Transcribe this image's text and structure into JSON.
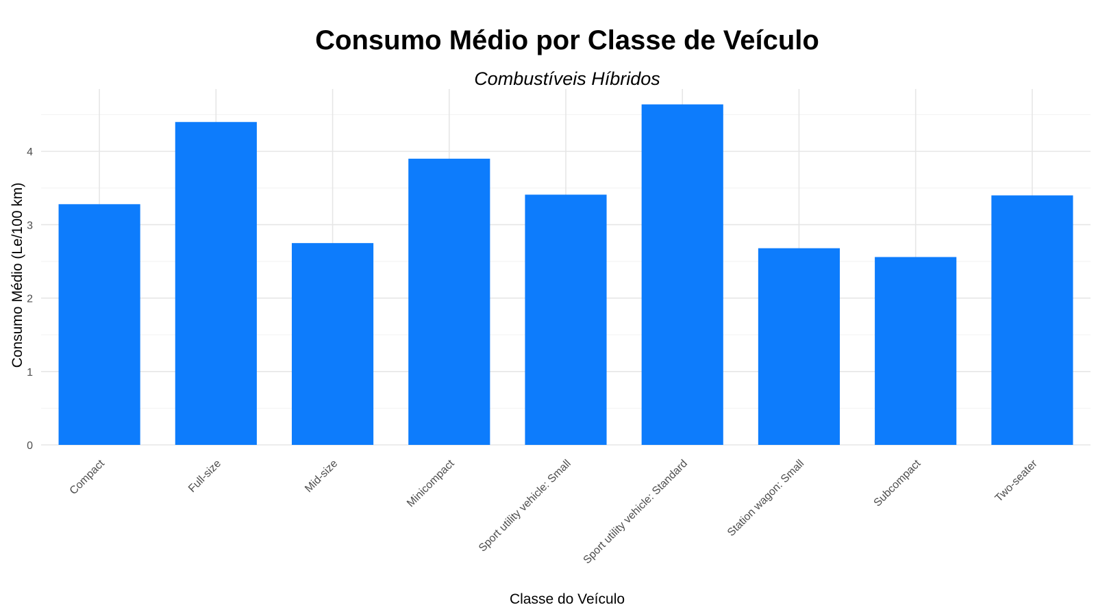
{
  "chart_data": {
    "type": "bar",
    "title": "Consumo Médio por Classe de Veículo",
    "subtitle": "Combustíveis Híbridos",
    "xlabel": "Classe do Veículo",
    "ylabel": "Consumo Médio (Le/100 km)",
    "categories": [
      "Compact",
      "Full-size",
      "Mid-size",
      "Minicompact",
      "Sport utility vehicle: Small",
      "Sport utility vehicle: Standard",
      "Station wagon: Small",
      "Subcompact",
      "Two-seater"
    ],
    "values": [
      3.28,
      4.4,
      2.75,
      3.9,
      3.41,
      4.64,
      2.68,
      2.56,
      3.4
    ],
    "ylim": [
      0,
      4.85
    ],
    "yticks": [
      0,
      1,
      2,
      3,
      4
    ],
    "grid": true,
    "legend": "none",
    "bar_color": "#0d7cfc"
  }
}
